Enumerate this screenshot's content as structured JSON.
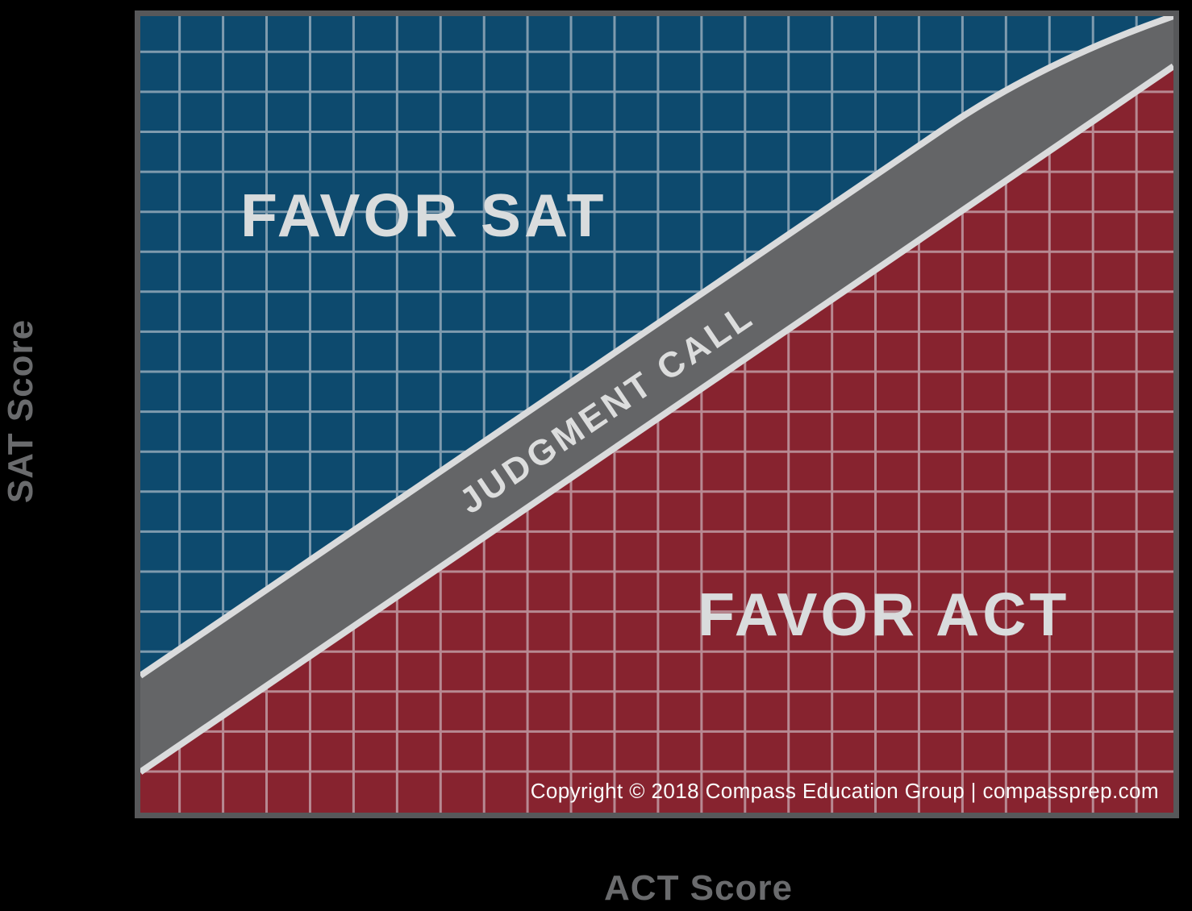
{
  "chart_data": {
    "type": "area",
    "xlabel": "ACT Score",
    "ylabel": "SAT Score",
    "x_ticks": [],
    "y_ticks": [],
    "legend": "none",
    "grid": {
      "visible": true,
      "columns": 24,
      "rows": 20,
      "first_col_frac": 0.038,
      "col_step_frac": 0.0421,
      "first_row_frac": 0.0448,
      "row_step_frac": 0.0502,
      "color": "rgba(222,222,228,0.55)",
      "line_width": 3
    },
    "regions": [
      {
        "label": "FAVOR SAT",
        "color": "#0d4a6e",
        "position": "above-band"
      },
      {
        "label": "JUDGMENT CALL",
        "color": "#646567",
        "position": "diagonal-band"
      },
      {
        "label": "FAVOR ACT",
        "color": "#87232f",
        "position": "below-band"
      }
    ],
    "band_geometry": {
      "top_edge": {
        "start": [
          0,
          0.828
        ],
        "line_to": [
          0.777,
          0.142
        ],
        "curve_control": [
          0.875,
          0.056
        ],
        "end": [
          1,
          0
        ]
      },
      "bottom_edge": {
        "start": [
          0,
          0.949
        ],
        "end": [
          1,
          0.063
        ]
      },
      "stripe_color": "#dadbdc",
      "stripe_width": 8
    }
  },
  "footer": {
    "copyright": "Copyright © 2018 Compass Education Group | compassprep.com"
  },
  "colors": {
    "background": "#000000",
    "frame_border": "#57585a",
    "region_label_text": "#d9dcdd",
    "band_label_text": "#dcdddd",
    "copyright_text": "#fbfcfc",
    "axis_label_text": "#6a6b6d"
  }
}
